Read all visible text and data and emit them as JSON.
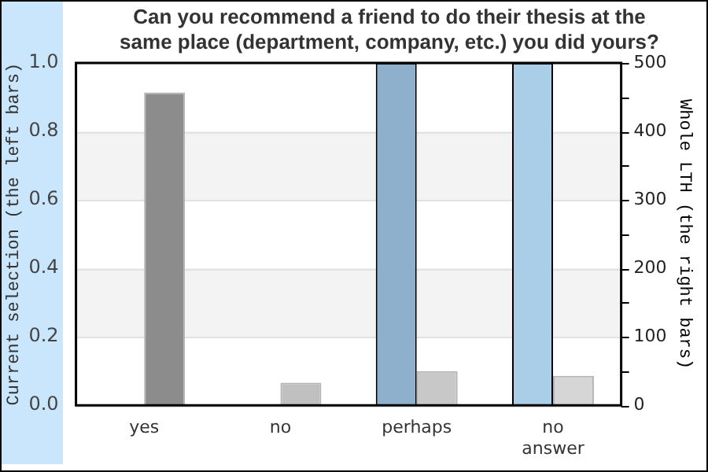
{
  "chart_data": {
    "type": "bar",
    "title": "Can you recommend a friend to do their thesis at the same place (department, company, etc.) you did yours?",
    "ylabel": "Current selection (the left bars)",
    "y2label": "Whole LTH (the right bars)",
    "categories": [
      "yes",
      "no",
      "perhaps",
      "no answer"
    ],
    "series": [
      {
        "colors": [
          "#8fb0cc",
          "#8fb0cc",
          "#8fb0cc",
          "#aacde8"
        ],
        "values": [
          0,
          0,
          1,
          1
        ]
      },
      {
        "axis": "y2",
        "colors": [
          "#8c8c8c",
          "#c0c0c0",
          "#c8c8c8",
          "#d6d6d6"
        ],
        "values": [
          457,
          33,
          50,
          43
        ]
      }
    ],
    "ylim": [
      0,
      1
    ],
    "yticks": [
      {
        "value": 0,
        "label": "0.0"
      },
      {
        "value": 0.2,
        "label": "0.2"
      },
      {
        "value": 0.4,
        "label": "0.4"
      },
      {
        "value": 0.6,
        "label": "0.6"
      },
      {
        "value": 0.8,
        "label": "0.8"
      },
      {
        "value": 1,
        "label": "1.0"
      }
    ],
    "y2lim": [
      0,
      500
    ],
    "y2ticks": [
      0,
      {
        "value": 50,
        "label": null
      },
      100,
      {
        "value": 150,
        "label": null
      },
      200,
      {
        "value": 250,
        "label": null
      },
      300,
      {
        "value": 350,
        "label": null
      },
      400,
      {
        "value": 450,
        "label": null
      },
      500
    ],
    "grid": "y",
    "legend": false
  }
}
